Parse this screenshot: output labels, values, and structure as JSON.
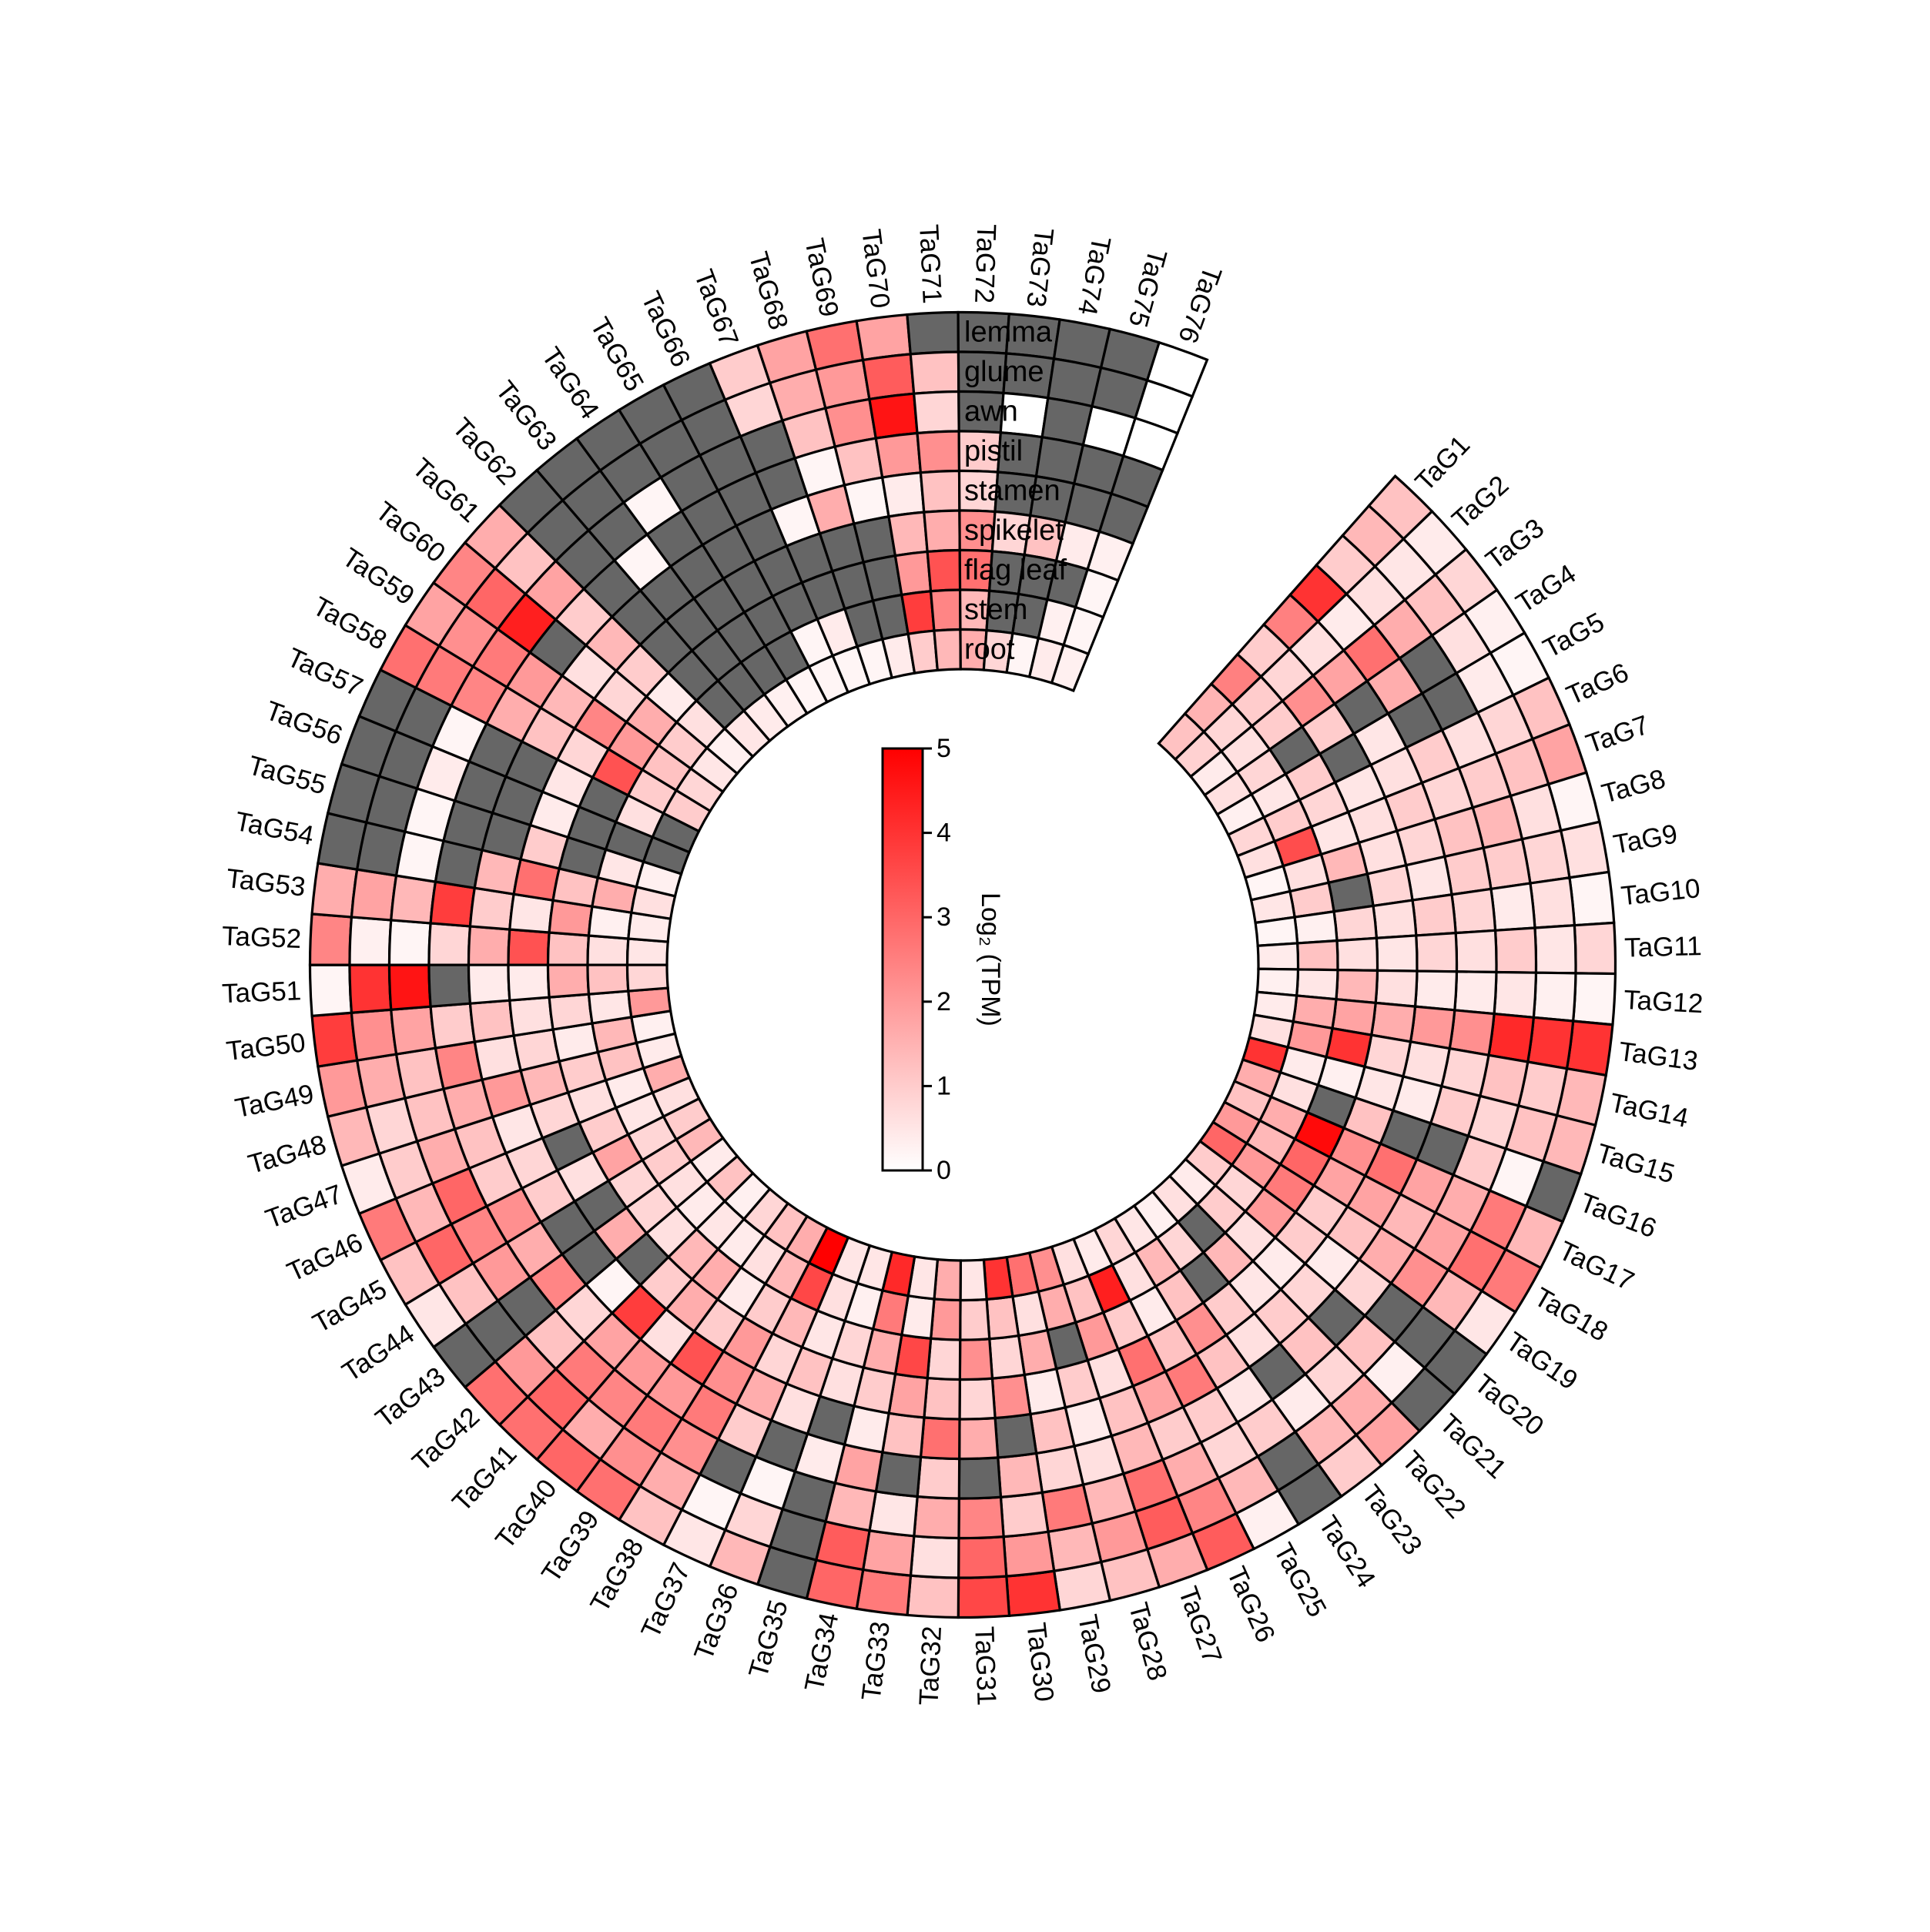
{
  "chart_data": {
    "type": "heatmap",
    "layout": "circular",
    "colorbar_title": "Log₂ (TPM)",
    "colorbar_ticks": [
      "0",
      "1",
      "2",
      "3",
      "4",
      "5"
    ],
    "scale": {
      "min": 0,
      "max": 5,
      "low_color": "#ffffff",
      "high_color": "#ff0000",
      "na_color": "#666666"
    },
    "tissues": [
      "lemma",
      "glume",
      "awn",
      "pistil",
      "stamen",
      "spikelet",
      "flag leaf",
      "stem",
      "root"
    ],
    "genes": [
      "TaG1",
      "TaG2",
      "TaG3",
      "TaG4",
      "TaG5",
      "TaG6",
      "TaG7",
      "TaG8",
      "TaG9",
      "TaG10",
      "TaG11",
      "TaG12",
      "TaG13",
      "TaG14",
      "TaG15",
      "TaG16",
      "TaG17",
      "TaG18",
      "TaG19",
      "TaG20",
      "TaG21",
      "TaG22",
      "TaG23",
      "TaG24",
      "TaG25",
      "TaG26",
      "TaG27",
      "TaG28",
      "TaG29",
      "TaG30",
      "TaG31",
      "TaG32",
      "TaG33",
      "TaG34",
      "TaG35",
      "TaG36",
      "TaG37",
      "TaG38",
      "TaG39",
      "TaG40",
      "TaG41",
      "TaG42",
      "TaG43",
      "TaG44",
      "TaG45",
      "TaG46",
      "TaG47",
      "TaG48",
      "TaG49",
      "TaG50",
      "TaG51",
      "TaG52",
      "TaG53",
      "TaG54",
      "TaG55",
      "TaG56",
      "TaG57",
      "TaG58",
      "TaG59",
      "TaG60",
      "TaG61",
      "TaG62",
      "TaG63",
      "TaG64",
      "TaG65",
      "TaG66",
      "TaG67",
      "TaG68",
      "TaG69",
      "TaG70",
      "TaG71",
      "TaG72",
      "TaG73",
      "TaG74",
      "TaG75",
      "TaG76"
    ],
    "values": [
      [
        1.2,
        1.4,
        1.0,
        4.0,
        2.5,
        1.0,
        2.5,
        1.5,
        1.2
      ],
      [
        0.4,
        0.5,
        0.6,
        0.4,
        0.6,
        0.8,
        1.0,
        0.8,
        0.9
      ],
      [
        0.8,
        1.2,
        1.6,
        2.8,
        1.8,
        2.2,
        1.0,
        0.6,
        0.4
      ],
      [
        0.3,
        0.6,
        null,
        1.6,
        null,
        1.0,
        null,
        0.8,
        0.6
      ],
      [
        0.2,
        0.4,
        null,
        null,
        0.5,
        null,
        1.0,
        0.5,
        0.3
      ],
      [
        1.2,
        0.8,
        0.6,
        1.0,
        0.6,
        0.5,
        0.8,
        1.0,
        0.8
      ],
      [
        1.8,
        1.2,
        1.0,
        0.8,
        1.0,
        0.6,
        0.5,
        3.5,
        0.6
      ],
      [
        0.2,
        0.6,
        1.4,
        1.2,
        0.8,
        0.6,
        1.4,
        0.6,
        0.2
      ],
      [
        0.6,
        0.8,
        1.0,
        1.0,
        0.5,
        0.8,
        null,
        1.0,
        0.5
      ],
      [
        0.2,
        0.6,
        0.4,
        0.8,
        1.0,
        0.6,
        0.8,
        0.3,
        0.2
      ],
      [
        0.8,
        0.5,
        1.0,
        0.6,
        0.8,
        0.5,
        0.6,
        1.2,
        0.4
      ],
      [
        0.2,
        0.3,
        0.5,
        0.4,
        0.4,
        0.6,
        1.4,
        0.5,
        0.3
      ],
      [
        4.0,
        4.0,
        4.2,
        2.2,
        2.0,
        1.6,
        1.8,
        1.6,
        0.4
      ],
      [
        1.4,
        1.0,
        1.2,
        0.8,
        0.6,
        0.8,
        4.0,
        2.0,
        0.6
      ],
      [
        1.4,
        1.2,
        0.8,
        1.0,
        0.4,
        0.5,
        0.3,
        0.4,
        4.0
      ],
      [
        null,
        0.2,
        1.0,
        null,
        null,
        1.2,
        null,
        0.6,
        1.6
      ],
      [
        1.4,
        2.6,
        1.6,
        1.8,
        2.8,
        2.2,
        4.8,
        1.6,
        1.2
      ],
      [
        2.6,
        2.8,
        1.8,
        1.4,
        1.8,
        1.8,
        3.0,
        1.4,
        2.0
      ],
      [
        0.5,
        1.4,
        2.2,
        1.6,
        1.2,
        1.0,
        2.6,
        2.0,
        3.0
      ],
      [
        null,
        null,
        null,
        0.8,
        0.4,
        1.0,
        2.0,
        0.8,
        1.0
      ],
      [
        null,
        0.3,
        1.2,
        null,
        0.8,
        0.4,
        0.6,
        1.0,
        0.4
      ],
      [
        1.8,
        1.6,
        0.8,
        1.2,
        1.0,
        0.5,
        1.4,
        null,
        0.6
      ],
      [
        1.0,
        1.4,
        0.4,
        null,
        0.6,
        1.0,
        null,
        0.8,
        0.3
      ],
      [
        null,
        null,
        1.0,
        0.5,
        1.2,
        2.2,
        1.2,
        1.4,
        0.5
      ],
      [
        0.3,
        1.4,
        0.8,
        1.0,
        2.6,
        1.2,
        0.4,
        0.6,
        0.8
      ],
      [
        3.2,
        2.4,
        1.6,
        1.0,
        1.8,
        2.8,
        1.0,
        4.4,
        0.4
      ],
      [
        1.6,
        3.2,
        2.8,
        1.4,
        1.2,
        0.6,
        2.0,
        1.2,
        0.6
      ],
      [
        1.2,
        2.0,
        1.4,
        0.6,
        0.4,
        1.0,
        null,
        1.6,
        2.2
      ],
      [
        0.8,
        1.4,
        2.6,
        0.8,
        1.2,
        0.4,
        1.6,
        0.6,
        2.8
      ],
      [
        4.0,
        2.0,
        1.0,
        1.4,
        null,
        2.2,
        0.8,
        1.2,
        4.0
      ],
      [
        3.6,
        3.0,
        2.4,
        null,
        1.6,
        0.8,
        2.2,
        1.0,
        0.5
      ],
      [
        1.2,
        0.6,
        1.6,
        1.0,
        2.8,
        1.2,
        0.8,
        2.0,
        1.6
      ],
      [
        2.6,
        1.8,
        0.5,
        null,
        1.2,
        1.8,
        3.6,
        0.4,
        0.5
      ],
      [
        3.0,
        3.2,
        1.4,
        1.8,
        0.4,
        1.0,
        1.6,
        2.6,
        4.2
      ],
      [
        null,
        null,
        null,
        0.4,
        null,
        0.6,
        0.8,
        0.3,
        0.5
      ],
      [
        1.4,
        0.8,
        0.2,
        null,
        0.6,
        1.2,
        0.5,
        0.6,
        0.5
      ],
      [
        0.5,
        0.2,
        null,
        1.0,
        1.6,
        0.8,
        1.4,
        3.6,
        5.0
      ],
      [
        1.2,
        1.6,
        2.2,
        2.6,
        2.2,
        2.0,
        1.0,
        1.4,
        1.6
      ],
      [
        2.8,
        2.2,
        2.6,
        2.0,
        3.4,
        1.0,
        0.4,
        0.6,
        1.2
      ],
      [
        3.0,
        1.6,
        2.4,
        2.0,
        0.6,
        1.6,
        1.6,
        0.4,
        0.8
      ],
      [
        2.8,
        3.0,
        2.6,
        1.8,
        3.8,
        1.0,
        1.4,
        0.5,
        0.3
      ],
      [
        2.8,
        2.0,
        1.2,
        0.8,
        0.2,
        null,
        0.6,
        0.4,
        1.2
      ],
      [
        null,
        null,
        null,
        2.4,
        null,
        1.6,
        0.8,
        0.6,
        0.4
      ],
      [
        0.5,
        1.2,
        2.0,
        1.6,
        null,
        null,
        0.8,
        1.0,
        1.4
      ],
      [
        1.2,
        3.0,
        2.4,
        2.2,
        1.0,
        0.6,
        1.8,
        0.8,
        1.0
      ],
      [
        2.6,
        1.4,
        3.0,
        1.0,
        0.8,
        null,
        1.0,
        0.5,
        0.6
      ],
      [
        0.4,
        1.0,
        1.6,
        1.2,
        0.5,
        0.8,
        0.6,
        0.4,
        1.6
      ],
      [
        1.4,
        0.8,
        1.2,
        1.6,
        2.0,
        1.4,
        1.0,
        1.2,
        0.4
      ],
      [
        2.0,
        1.6,
        1.2,
        2.4,
        0.6,
        0.8,
        0.4,
        1.4,
        0.3
      ],
      [
        3.8,
        2.2,
        1.8,
        1.0,
        1.2,
        0.6,
        0.8,
        0.5,
        2.0
      ],
      [
        0.2,
        4.0,
        4.6,
        null,
        0.4,
        0.4,
        1.6,
        1.2,
        0.8
      ],
      [
        2.4,
        0.3,
        0.2,
        0.8,
        1.6,
        3.4,
        1.2,
        0.6,
        0.5
      ],
      [
        1.6,
        1.8,
        1.4,
        3.8,
        1.0,
        0.5,
        2.0,
        0.3,
        0.4
      ],
      [
        null,
        null,
        0.2,
        null,
        1.4,
        2.8,
        1.2,
        1.6,
        0.6
      ],
      [
        null,
        null,
        0.2,
        null,
        null,
        1.0,
        null,
        0.5,
        0.3
      ],
      [
        null,
        null,
        0.4,
        null,
        null,
        0.4,
        null,
        null,
        null
      ],
      [
        null,
        null,
        0.2,
        null,
        null,
        0.5,
        null,
        0.6,
        null
      ],
      [
        2.8,
        2.6,
        2.4,
        1.6,
        1.2,
        0.8,
        3.4,
        1.0,
        1.0
      ],
      [
        1.8,
        2.2,
        2.6,
        2.0,
        1.4,
        2.4,
        2.0,
        1.2,
        0.8
      ],
      [
        2.4,
        3.0,
        4.4,
        null,
        0.6,
        0.8,
        1.6,
        1.0,
        0.5
      ],
      [
        1.6,
        1.2,
        1.8,
        1.0,
        1.4,
        1.0,
        0.4,
        0.6,
        0.3
      ],
      [
        null,
        null,
        null,
        null,
        null,
        null,
        null,
        null,
        0.5
      ],
      [
        null,
        null,
        null,
        0.2,
        null,
        null,
        null,
        null,
        0.4
      ],
      [
        null,
        null,
        0.2,
        null,
        null,
        null,
        null,
        null,
        0.3
      ],
      [
        null,
        null,
        null,
        null,
        null,
        null,
        null,
        null,
        0.2
      ],
      [
        null,
        null,
        null,
        null,
        null,
        null,
        null,
        0.2,
        0.2
      ],
      [
        1.0,
        0.8,
        null,
        null,
        0.2,
        null,
        null,
        0.4,
        0.2
      ],
      [
        1.8,
        1.6,
        1.2,
        0.2,
        1.6,
        null,
        null,
        null,
        0.2
      ],
      [
        2.8,
        2.0,
        2.2,
        1.2,
        0.2,
        null,
        null,
        null,
        0.4
      ],
      [
        1.8,
        3.2,
        4.6,
        2.0,
        0.4,
        1.4,
        2.0,
        3.8,
        1.0
      ],
      [
        null,
        1.2,
        0.8,
        2.2,
        1.2,
        1.6,
        3.4,
        2.4,
        1.4
      ],
      [
        null,
        null,
        null,
        1.0,
        0.8,
        2.2,
        2.8,
        1.4,
        1.6
      ],
      [
        null,
        null,
        0.0,
        null,
        null,
        0.8,
        null,
        null,
        0.8
      ],
      [
        null,
        null,
        null,
        null,
        null,
        1.2,
        null,
        null,
        0.2
      ],
      [
        null,
        null,
        0.0,
        null,
        null,
        0.4,
        null,
        0.3,
        0.4
      ],
      [
        0.0,
        0.0,
        0.0,
        null,
        null,
        0.3,
        0.2,
        0.2,
        0.3
      ]
    ]
  }
}
